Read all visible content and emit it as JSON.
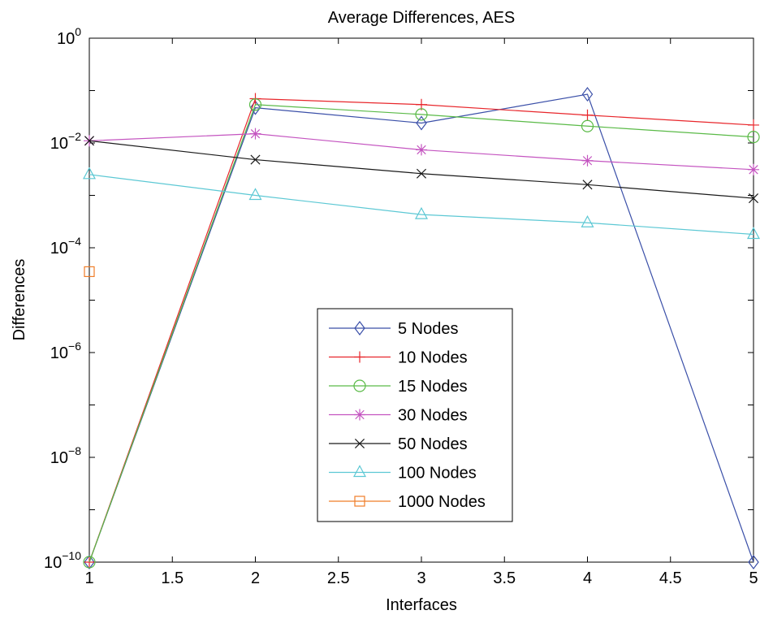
{
  "chart_data": {
    "type": "line",
    "title": "Average Differences, AES",
    "xlabel": "Interfaces",
    "ylabel": "Differences",
    "xlim": [
      1,
      5
    ],
    "ylim": [
      1e-10,
      1
    ],
    "yscale": "log",
    "grid": false,
    "legend_position": "center",
    "x_ticks": [
      "1",
      "1.5",
      "2",
      "2.5",
      "3",
      "3.5",
      "4",
      "4.5",
      "5"
    ],
    "y_ticks": [
      {
        "base": "10",
        "exp": "−10"
      },
      {
        "base": "10",
        "exp": "−8"
      },
      {
        "base": "10",
        "exp": "−6"
      },
      {
        "base": "10",
        "exp": "−4"
      },
      {
        "base": "10",
        "exp": "−2"
      },
      {
        "base": "10",
        "exp": "0"
      }
    ],
    "x": [
      1,
      2,
      3,
      4,
      5
    ],
    "series": [
      {
        "name": "5 Nodes",
        "color": "#3a4fa8",
        "marker": "diamond",
        "values": [
          1e-10,
          0.047,
          0.024,
          0.085,
          1e-10
        ]
      },
      {
        "name": "10 Nodes",
        "color": "#e8262b",
        "marker": "plus",
        "values": [
          1e-10,
          0.07,
          0.054,
          0.034,
          0.022
        ]
      },
      {
        "name": "15 Nodes",
        "color": "#5aba47",
        "marker": "circle",
        "values": [
          1e-10,
          0.054,
          0.035,
          0.021,
          0.013
        ]
      },
      {
        "name": "30 Nodes",
        "color": "#c454c0",
        "marker": "asterisk",
        "values": [
          0.011,
          0.015,
          0.0074,
          0.0046,
          0.0031
        ]
      },
      {
        "name": "50 Nodes",
        "color": "#1a1a1a",
        "marker": "x",
        "values": [
          0.011,
          0.0048,
          0.0026,
          0.0016,
          0.00088
        ]
      },
      {
        "name": "100 Nodes",
        "color": "#5cc8d4",
        "marker": "triangle",
        "values": [
          0.0025,
          0.001,
          0.00043,
          0.0003,
          0.00018
        ]
      },
      {
        "name": "1000 Nodes",
        "color": "#ef7d28",
        "marker": "square",
        "values": [
          3.5e-05,
          null,
          null,
          null,
          null
        ]
      }
    ]
  }
}
